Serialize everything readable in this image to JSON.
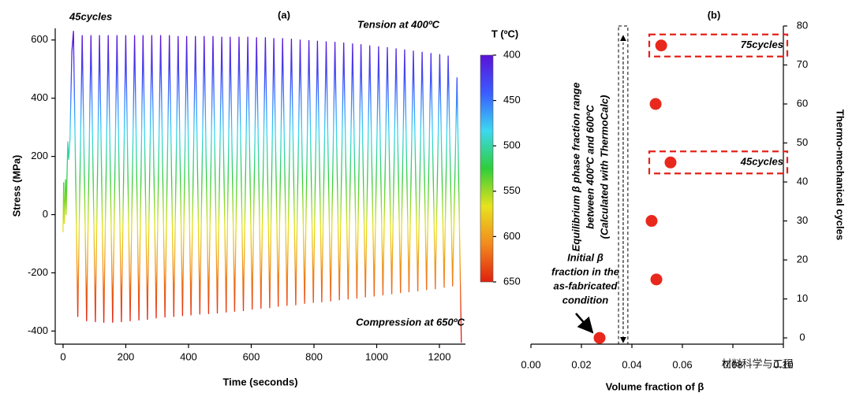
{
  "chart_data": [
    {
      "type": "line",
      "panel_label": "(a)",
      "x_label": "Time (seconds)",
      "y_label": "Stress (MPa)",
      "annotations": [
        "45cycles",
        "Tension at 400ºC",
        "Compression at 650ºC"
      ],
      "xlim": [
        -25,
        1283
      ],
      "ylim": [
        -445,
        640
      ],
      "xticks": [
        0,
        200,
        400,
        600,
        800,
        1000,
        1200
      ],
      "yticks": [
        -400,
        -200,
        0,
        200,
        400,
        600
      ],
      "x": [
        0,
        2,
        4,
        8,
        10,
        15,
        18,
        22,
        28,
        33,
        47,
        61,
        75,
        89,
        103,
        116,
        130,
        144,
        158,
        172,
        186,
        200,
        214,
        228,
        242,
        255,
        269,
        283,
        297,
        311,
        325,
        339,
        353,
        367,
        381,
        394,
        408,
        422,
        436,
        450,
        464,
        478,
        492,
        506,
        520,
        533,
        547,
        561,
        575,
        589,
        603,
        617,
        631,
        645,
        659,
        672,
        686,
        700,
        714,
        728,
        742,
        756,
        770,
        784,
        798,
        811,
        825,
        839,
        853,
        867,
        881,
        895,
        909,
        923,
        937,
        950,
        964,
        978,
        992,
        1006,
        1020,
        1034,
        1048,
        1062,
        1076,
        1089,
        1103,
        1117,
        1131,
        1145,
        1159,
        1173,
        1187,
        1201,
        1215,
        1228,
        1242,
        1256,
        1270
      ],
      "values": [
        -60,
        110,
        -30,
        120,
        0,
        250,
        190,
        260,
        560,
        630,
        -350,
        615,
        -365,
        615,
        -368,
        615,
        -370,
        615,
        -370,
        615,
        -368,
        615,
        -365,
        615,
        -362,
        615,
        -360,
        615,
        -355,
        615,
        -352,
        615,
        -350,
        612,
        -347,
        612,
        -345,
        612,
        -342,
        612,
        -340,
        612,
        -338,
        610,
        -335,
        610,
        -332,
        610,
        -330,
        610,
        -325,
        608,
        -322,
        608,
        -320,
        605,
        -315,
        605,
        -312,
        603,
        -310,
        600,
        -305,
        598,
        -302,
        596,
        -300,
        594,
        -297,
        592,
        -293,
        590,
        -290,
        587,
        -287,
        584,
        -283,
        580,
        -280,
        577,
        -276,
        574,
        -272,
        570,
        -268,
        566,
        -265,
        562,
        -262,
        558,
        -258,
        554,
        -255,
        550,
        -250,
        545,
        -245,
        470,
        -440
      ],
      "colorbar": {
        "title": "T (ºC)",
        "ticks": [
          400,
          450,
          500,
          550,
          600,
          650
        ],
        "colors": [
          "#5a12d8",
          "#3a5cff",
          "#3cd8f0",
          "#2fce3a",
          "#e8e21e",
          "#f28a1e",
          "#e0200e"
        ]
      }
    },
    {
      "type": "scatter",
      "panel_label": "(b)",
      "x_label": "Volume fraction of β",
      "y_label": "Thermo-mechanical cycles",
      "annotations": [
        "Equilibrium β phase fraction range",
        "between 400ºC and 600ºC",
        "(Calculated with ThermoCalc)",
        "Initial β",
        "fraction in the",
        "as-fabricated",
        "condition",
        "75cycles",
        "45cycles"
      ],
      "watermark": "材料科学与工程",
      "color": "#e8281c",
      "xlim": [
        0,
        0.1
      ],
      "ylim": [
        -1.6,
        80
      ],
      "xticks": [
        {
          "value": 0,
          "label": "0.00"
        },
        {
          "value": 0.02,
          "label": "0.02"
        },
        {
          "value": 0.04,
          "label": "0.04"
        },
        {
          "value": 0.06,
          "label": "0.06"
        },
        {
          "value": 0.08,
          "label": "0.08"
        },
        {
          "value": 0.1,
          "label": "0.10"
        }
      ],
      "yticks": [
        0,
        10,
        20,
        30,
        40,
        50,
        60,
        70,
        80
      ],
      "x": [
        0.0272,
        0.0497,
        0.0478,
        0.0553,
        0.0494,
        0.0516
      ],
      "values": [
        0,
        15,
        30,
        45,
        60,
        75
      ],
      "equilibrium_range": [
        0.0347,
        0.0384
      ]
    }
  ]
}
